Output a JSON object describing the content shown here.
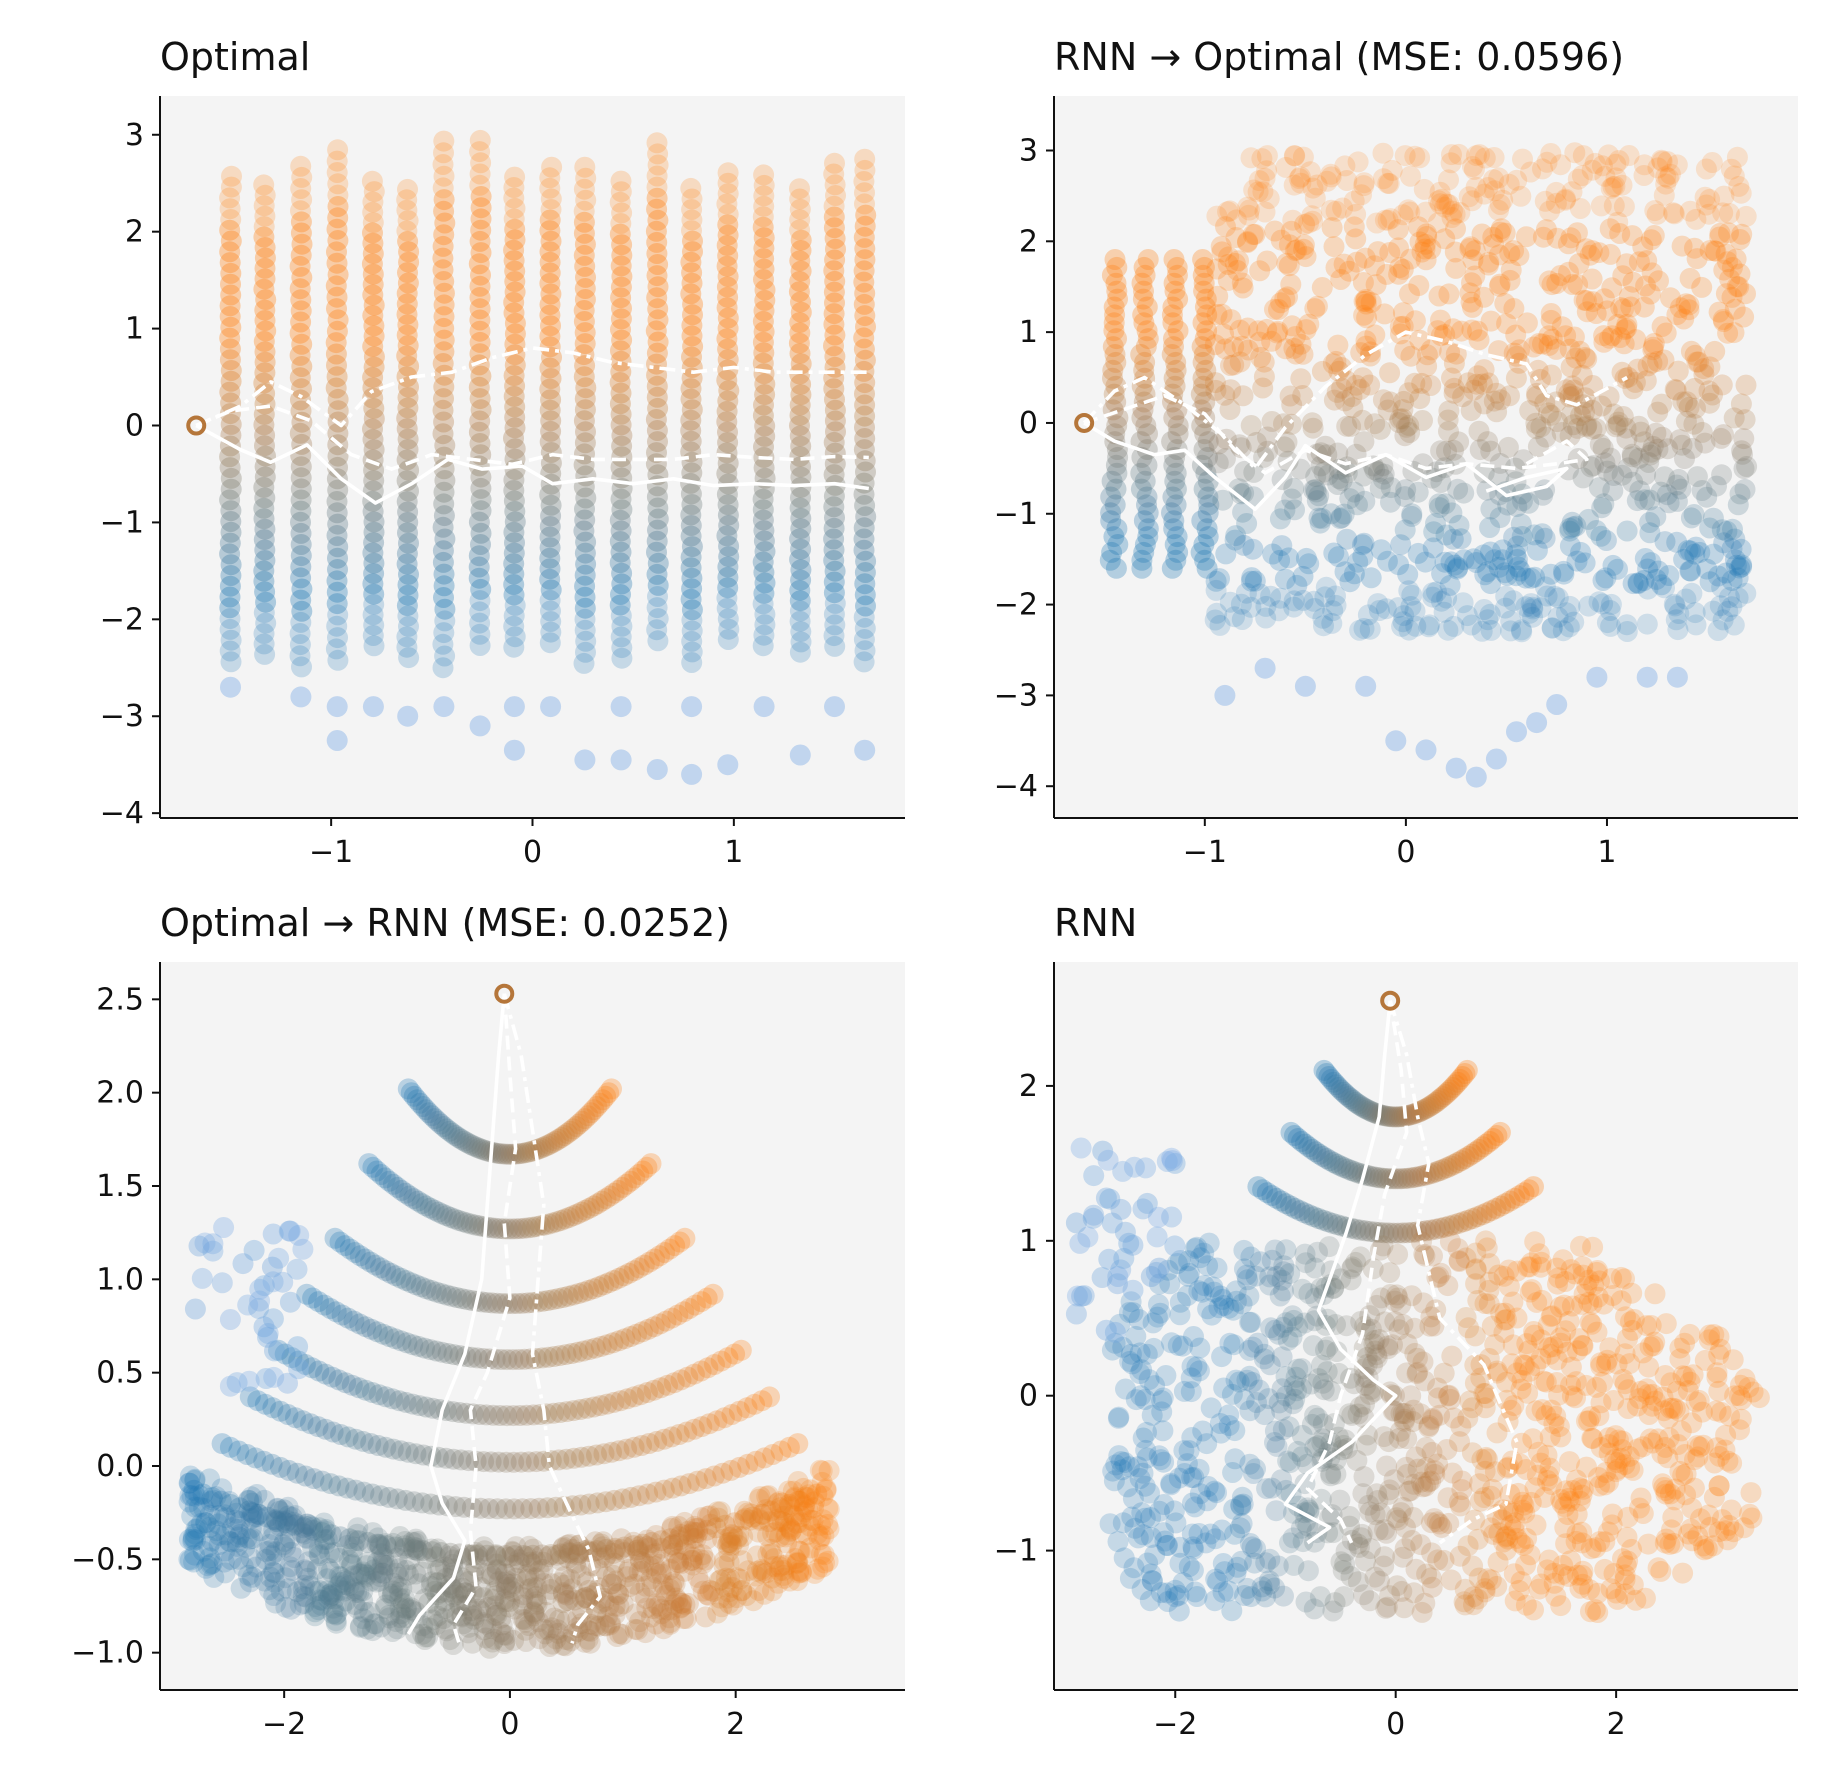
{
  "chart_data": [
    {
      "id": "optimal",
      "type": "scatter",
      "title": "Optimal",
      "xlabel": "",
      "ylabel": "",
      "xlim": [
        -1.85,
        1.85
      ],
      "ylim": [
        -4.05,
        3.4
      ],
      "xticks": [
        -1,
        0,
        1
      ],
      "yticks": [
        -4,
        -3,
        -2,
        -1,
        0,
        1,
        2,
        3
      ],
      "xtick_labels": [
        "−1",
        "0",
        "1"
      ],
      "ytick_labels": [
        "−4",
        "−3",
        "−2",
        "−1",
        "0",
        "1",
        "2",
        "3"
      ],
      "grid": false,
      "scatter_style": "columns",
      "columns_x": [
        -1.5,
        -1.33,
        -1.15,
        -0.97,
        -0.79,
        -0.62,
        -0.44,
        -0.26,
        -0.09,
        0.09,
        0.26,
        0.44,
        0.62,
        0.79,
        0.97,
        1.15,
        1.33,
        1.5,
        1.65
      ],
      "y_range": [
        -2.5,
        3.0
      ],
      "sparse_low_points": [
        [
          -1.5,
          -2.7
        ],
        [
          -1.15,
          -2.8
        ],
        [
          -0.97,
          -2.9
        ],
        [
          -0.97,
          -3.25
        ],
        [
          -0.79,
          -2.9
        ],
        [
          -0.62,
          -3.0
        ],
        [
          -0.44,
          -2.9
        ],
        [
          -0.26,
          -3.1
        ],
        [
          -0.09,
          -2.9
        ],
        [
          -0.09,
          -3.35
        ],
        [
          0.09,
          -2.9
        ],
        [
          0.26,
          -3.45
        ],
        [
          0.44,
          -2.9
        ],
        [
          0.44,
          -3.45
        ],
        [
          0.62,
          -3.55
        ],
        [
          0.79,
          -2.9
        ],
        [
          0.79,
          -3.6
        ],
        [
          0.97,
          -3.5
        ],
        [
          1.15,
          -2.9
        ],
        [
          1.33,
          -3.4
        ],
        [
          1.5,
          -2.9
        ],
        [
          1.65,
          -3.35
        ]
      ],
      "origin": [
        -1.67,
        0.0
      ],
      "trajectories": [
        {
          "style": "solid",
          "points": [
            [
              -1.67,
              0
            ],
            [
              -1.45,
              -0.25
            ],
            [
              -1.3,
              -0.38
            ],
            [
              -1.12,
              -0.2
            ],
            [
              -0.95,
              -0.55
            ],
            [
              -0.78,
              -0.8
            ],
            [
              -0.6,
              -0.6
            ],
            [
              -0.42,
              -0.35
            ],
            [
              -0.25,
              -0.45
            ],
            [
              -0.05,
              -0.42
            ],
            [
              0.1,
              -0.6
            ],
            [
              0.3,
              -0.55
            ],
            [
              0.5,
              -0.6
            ],
            [
              0.7,
              -0.55
            ],
            [
              0.9,
              -0.62
            ],
            [
              1.1,
              -0.6
            ],
            [
              1.3,
              -0.62
            ],
            [
              1.5,
              -0.6
            ],
            [
              1.67,
              -0.65
            ]
          ]
        },
        {
          "style": "dashed",
          "points": [
            [
              -1.67,
              0
            ],
            [
              -1.5,
              0.15
            ],
            [
              -1.3,
              0.2
            ],
            [
              -1.1,
              0.05
            ],
            [
              -0.9,
              -0.3
            ],
            [
              -0.7,
              -0.45
            ],
            [
              -0.5,
              -0.3
            ],
            [
              -0.3,
              -0.35
            ],
            [
              -0.1,
              -0.4
            ],
            [
              0.1,
              -0.3
            ],
            [
              0.3,
              -0.35
            ],
            [
              0.5,
              -0.35
            ],
            [
              0.7,
              -0.35
            ],
            [
              0.9,
              -0.3
            ],
            [
              1.1,
              -0.33
            ],
            [
              1.3,
              -0.35
            ],
            [
              1.5,
              -0.32
            ],
            [
              1.67,
              -0.33
            ]
          ]
        },
        {
          "style": "dashdot",
          "points": [
            [
              -1.67,
              0
            ],
            [
              -1.45,
              0.2
            ],
            [
              -1.3,
              0.45
            ],
            [
              -1.15,
              0.3
            ],
            [
              -0.95,
              0.0
            ],
            [
              -0.8,
              0.35
            ],
            [
              -0.6,
              0.5
            ],
            [
              -0.4,
              0.55
            ],
            [
              -0.2,
              0.7
            ],
            [
              0.0,
              0.8
            ],
            [
              0.2,
              0.75
            ],
            [
              0.4,
              0.65
            ],
            [
              0.6,
              0.6
            ],
            [
              0.8,
              0.55
            ],
            [
              1.0,
              0.6
            ],
            [
              1.2,
              0.55
            ],
            [
              1.4,
              0.55
            ],
            [
              1.67,
              0.55
            ]
          ]
        }
      ]
    },
    {
      "id": "rnn-to-optimal",
      "type": "scatter",
      "title": "RNN → Optimal (MSE: 0.0596)",
      "xlabel": "",
      "ylabel": "",
      "xlim": [
        -1.75,
        1.95
      ],
      "ylim": [
        -4.35,
        3.6
      ],
      "xticks": [
        -1,
        0,
        1
      ],
      "yticks": [
        -4,
        -3,
        -2,
        -1,
        0,
        1,
        2,
        3
      ],
      "xtick_labels": [
        "−1",
        "0",
        "1"
      ],
      "ytick_labels": [
        "−4",
        "−3",
        "−2",
        "−1",
        "0",
        "1",
        "2",
        "3"
      ],
      "grid": false,
      "scatter_style": "cloud",
      "x_range": [
        -1.45,
        1.75
      ],
      "y_range": [
        -2.5,
        3.1
      ],
      "sparse_low_points": [
        [
          -0.9,
          -3.0
        ],
        [
          -0.7,
          -2.7
        ],
        [
          -0.5,
          -2.9
        ],
        [
          -0.2,
          -2.9
        ],
        [
          -0.05,
          -3.5
        ],
        [
          0.1,
          -3.6
        ],
        [
          0.25,
          -3.8
        ],
        [
          0.35,
          -3.9
        ],
        [
          0.45,
          -3.7
        ],
        [
          0.55,
          -3.4
        ],
        [
          0.65,
          -3.3
        ],
        [
          0.75,
          -3.1
        ],
        [
          0.95,
          -2.8
        ],
        [
          1.2,
          -2.8
        ],
        [
          1.35,
          -2.8
        ]
      ],
      "origin": [
        -1.6,
        0.0
      ],
      "trajectories": [
        {
          "style": "solid",
          "points": [
            [
              -1.6,
              0
            ],
            [
              -1.45,
              -0.2
            ],
            [
              -1.25,
              -0.35
            ],
            [
              -1.1,
              -0.3
            ],
            [
              -0.95,
              -0.6
            ],
            [
              -0.75,
              -0.95
            ],
            [
              -0.6,
              -0.6
            ],
            [
              -0.5,
              -0.25
            ],
            [
              -0.3,
              -0.55
            ],
            [
              -0.1,
              -0.35
            ],
            [
              0.1,
              -0.6
            ],
            [
              0.3,
              -0.45
            ],
            [
              0.5,
              -0.8
            ],
            [
              0.7,
              -0.7
            ],
            [
              0.8,
              -0.5
            ],
            [
              0.6,
              -0.6
            ],
            [
              0.4,
              -0.75
            ]
          ]
        },
        {
          "style": "dashed",
          "points": [
            [
              -1.6,
              0
            ],
            [
              -1.4,
              0.15
            ],
            [
              -1.2,
              0.3
            ],
            [
              -1.0,
              0.1
            ],
            [
              -0.85,
              -0.3
            ],
            [
              -0.7,
              -0.55
            ],
            [
              -0.5,
              -0.3
            ],
            [
              -0.3,
              -0.45
            ],
            [
              -0.1,
              -0.35
            ],
            [
              0.1,
              -0.5
            ],
            [
              0.3,
              -0.45
            ],
            [
              0.55,
              -0.5
            ],
            [
              0.75,
              -0.45
            ],
            [
              0.9,
              -0.4
            ],
            [
              0.8,
              -0.2
            ],
            [
              0.6,
              -0.45
            ]
          ]
        },
        {
          "style": "dashdot",
          "points": [
            [
              -1.6,
              0
            ],
            [
              -1.45,
              0.35
            ],
            [
              -1.3,
              0.5
            ],
            [
              -1.1,
              0.2
            ],
            [
              -0.9,
              -0.15
            ],
            [
              -0.75,
              -0.5
            ],
            [
              -0.6,
              -0.05
            ],
            [
              -0.4,
              0.4
            ],
            [
              -0.2,
              0.75
            ],
            [
              0.0,
              1.0
            ],
            [
              0.2,
              0.9
            ],
            [
              0.4,
              0.75
            ],
            [
              0.6,
              0.65
            ],
            [
              0.7,
              0.3
            ],
            [
              0.85,
              0.2
            ],
            [
              1.1,
              0.5
            ]
          ]
        }
      ]
    },
    {
      "id": "optimal-to-rnn",
      "type": "scatter",
      "title": "Optimal → RNN (MSE: 0.0252)",
      "xlabel": "",
      "ylabel": "",
      "xlim": [
        -3.1,
        3.5
      ],
      "ylim": [
        -1.2,
        2.7
      ],
      "xticks": [
        -2,
        0,
        2
      ],
      "yticks": [
        -1.0,
        -0.5,
        0.0,
        0.5,
        1.0,
        1.5,
        2.0,
        2.5
      ],
      "xtick_labels": [
        "−2",
        "0",
        "2"
      ],
      "ytick_labels": [
        "−1.0",
        "−0.5",
        "0.0",
        "0.5",
        "1.0",
        "1.5",
        "2.0",
        "2.5"
      ],
      "grid": false,
      "scatter_style": "arcs",
      "origin": [
        -0.05,
        2.53
      ],
      "trajectories": [
        {
          "style": "solid",
          "points": [
            [
              -0.05,
              2.53
            ],
            [
              -0.1,
              2.2
            ],
            [
              -0.15,
              1.8
            ],
            [
              -0.2,
              1.4
            ],
            [
              -0.25,
              1.0
            ],
            [
              -0.4,
              0.6
            ],
            [
              -0.6,
              0.3
            ],
            [
              -0.7,
              0.0
            ],
            [
              -0.6,
              -0.2
            ],
            [
              -0.4,
              -0.4
            ],
            [
              -0.5,
              -0.6
            ],
            [
              -0.8,
              -0.8
            ],
            [
              -0.9,
              -0.9
            ]
          ]
        },
        {
          "style": "dashed",
          "points": [
            [
              -0.05,
              2.53
            ],
            [
              0.0,
              2.1
            ],
            [
              0.05,
              1.7
            ],
            [
              -0.05,
              1.3
            ],
            [
              0.0,
              0.9
            ],
            [
              -0.2,
              0.5
            ],
            [
              -0.35,
              0.3
            ],
            [
              -0.3,
              0.0
            ],
            [
              -0.35,
              -0.35
            ],
            [
              -0.3,
              -0.65
            ],
            [
              -0.5,
              -0.85
            ],
            [
              -0.45,
              -0.95
            ]
          ]
        },
        {
          "style": "dashdot",
          "points": [
            [
              -0.05,
              2.53
            ],
            [
              0.1,
              2.2
            ],
            [
              0.2,
              1.8
            ],
            [
              0.3,
              1.4
            ],
            [
              0.25,
              1.0
            ],
            [
              0.2,
              0.6
            ],
            [
              0.3,
              0.3
            ],
            [
              0.35,
              0.0
            ],
            [
              0.5,
              -0.2
            ],
            [
              0.7,
              -0.45
            ],
            [
              0.8,
              -0.7
            ],
            [
              0.6,
              -0.85
            ],
            [
              0.55,
              -0.95
            ]
          ]
        }
      ]
    },
    {
      "id": "rnn",
      "type": "scatter",
      "title": "RNN",
      "xlabel": "",
      "ylabel": "",
      "xlim": [
        -3.1,
        3.65
      ],
      "ylim": [
        -1.9,
        2.8
      ],
      "xticks": [
        -2,
        0,
        2
      ],
      "yticks": [
        -1,
        0,
        1,
        2
      ],
      "xtick_labels": [
        "−2",
        "0",
        "2"
      ],
      "ytick_labels": [
        "−1",
        "0",
        "1",
        "2"
      ],
      "grid": false,
      "scatter_style": "rnn-cloud",
      "origin": [
        -0.05,
        2.55
      ],
      "trajectories": [
        {
          "style": "solid",
          "points": [
            [
              -0.05,
              2.55
            ],
            [
              -0.1,
              2.2
            ],
            [
              -0.15,
              1.8
            ],
            [
              -0.3,
              1.4
            ],
            [
              -0.45,
              1.05
            ],
            [
              -0.7,
              0.55
            ],
            [
              -0.5,
              0.3
            ],
            [
              -0.2,
              0.1
            ],
            [
              0.0,
              0.0
            ],
            [
              -0.4,
              -0.3
            ],
            [
              -0.8,
              -0.5
            ],
            [
              -1.0,
              -0.7
            ],
            [
              -0.6,
              -0.85
            ],
            [
              -0.8,
              -0.95
            ]
          ]
        },
        {
          "style": "dashed",
          "points": [
            [
              -0.05,
              2.55
            ],
            [
              0.05,
              2.1
            ],
            [
              0.1,
              1.7
            ],
            [
              -0.1,
              1.3
            ],
            [
              -0.2,
              0.9
            ],
            [
              -0.3,
              0.4
            ],
            [
              -0.5,
              0.0
            ],
            [
              -0.6,
              -0.3
            ],
            [
              -0.8,
              -0.6
            ],
            [
              -0.5,
              -0.8
            ],
            [
              -0.4,
              -0.95
            ]
          ]
        },
        {
          "style": "dashdot",
          "points": [
            [
              -0.05,
              2.55
            ],
            [
              0.1,
              2.2
            ],
            [
              0.2,
              1.8
            ],
            [
              0.3,
              1.5
            ],
            [
              0.2,
              1.1
            ],
            [
              0.4,
              0.5
            ],
            [
              0.8,
              0.2
            ],
            [
              1.1,
              -0.3
            ],
            [
              1.0,
              -0.7
            ],
            [
              0.7,
              -0.8
            ],
            [
              0.5,
              -0.9
            ],
            [
              0.4,
              -0.95
            ]
          ]
        }
      ]
    }
  ]
}
